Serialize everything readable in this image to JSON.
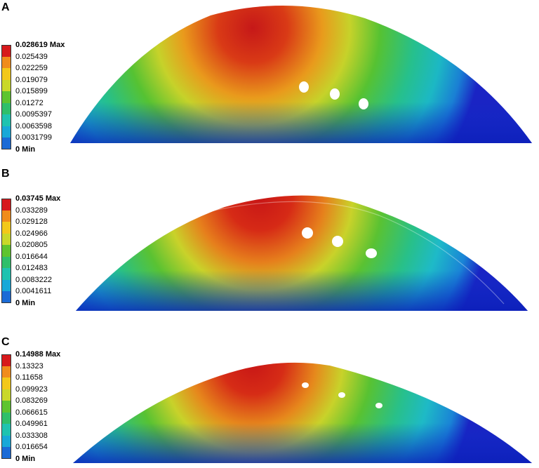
{
  "panels": [
    {
      "letter": "A",
      "legend": [
        "0.028619 Max",
        "0.025439",
        "0.022259",
        "0.019079",
        "0.015899",
        "0.01272",
        "0.0095397",
        "0.0063598",
        "0.0031799",
        "0 Min"
      ]
    },
    {
      "letter": "B",
      "legend": [
        "0.03745 Max",
        "0.033289",
        "0.029128",
        "0.024966",
        "0.020805",
        "0.016644",
        "0.012483",
        "0.0083222",
        "0.0041611",
        "0 Min"
      ]
    },
    {
      "letter": "C",
      "legend": [
        "0.14988 Max",
        "0.13323",
        "0.11658",
        "0.099923",
        "0.083269",
        "0.066615",
        "0.049961",
        "0.033308",
        "0.016654",
        "0 Min"
      ]
    }
  ],
  "colors": {
    "scale": [
      "#d7191c",
      "#f08c1c",
      "#f3c81a",
      "#c9d82a",
      "#5ec42f",
      "#2fbf6a",
      "#1fc3b0",
      "#18a8d8",
      "#1b6bd6",
      "#1c1fcf"
    ]
  }
}
